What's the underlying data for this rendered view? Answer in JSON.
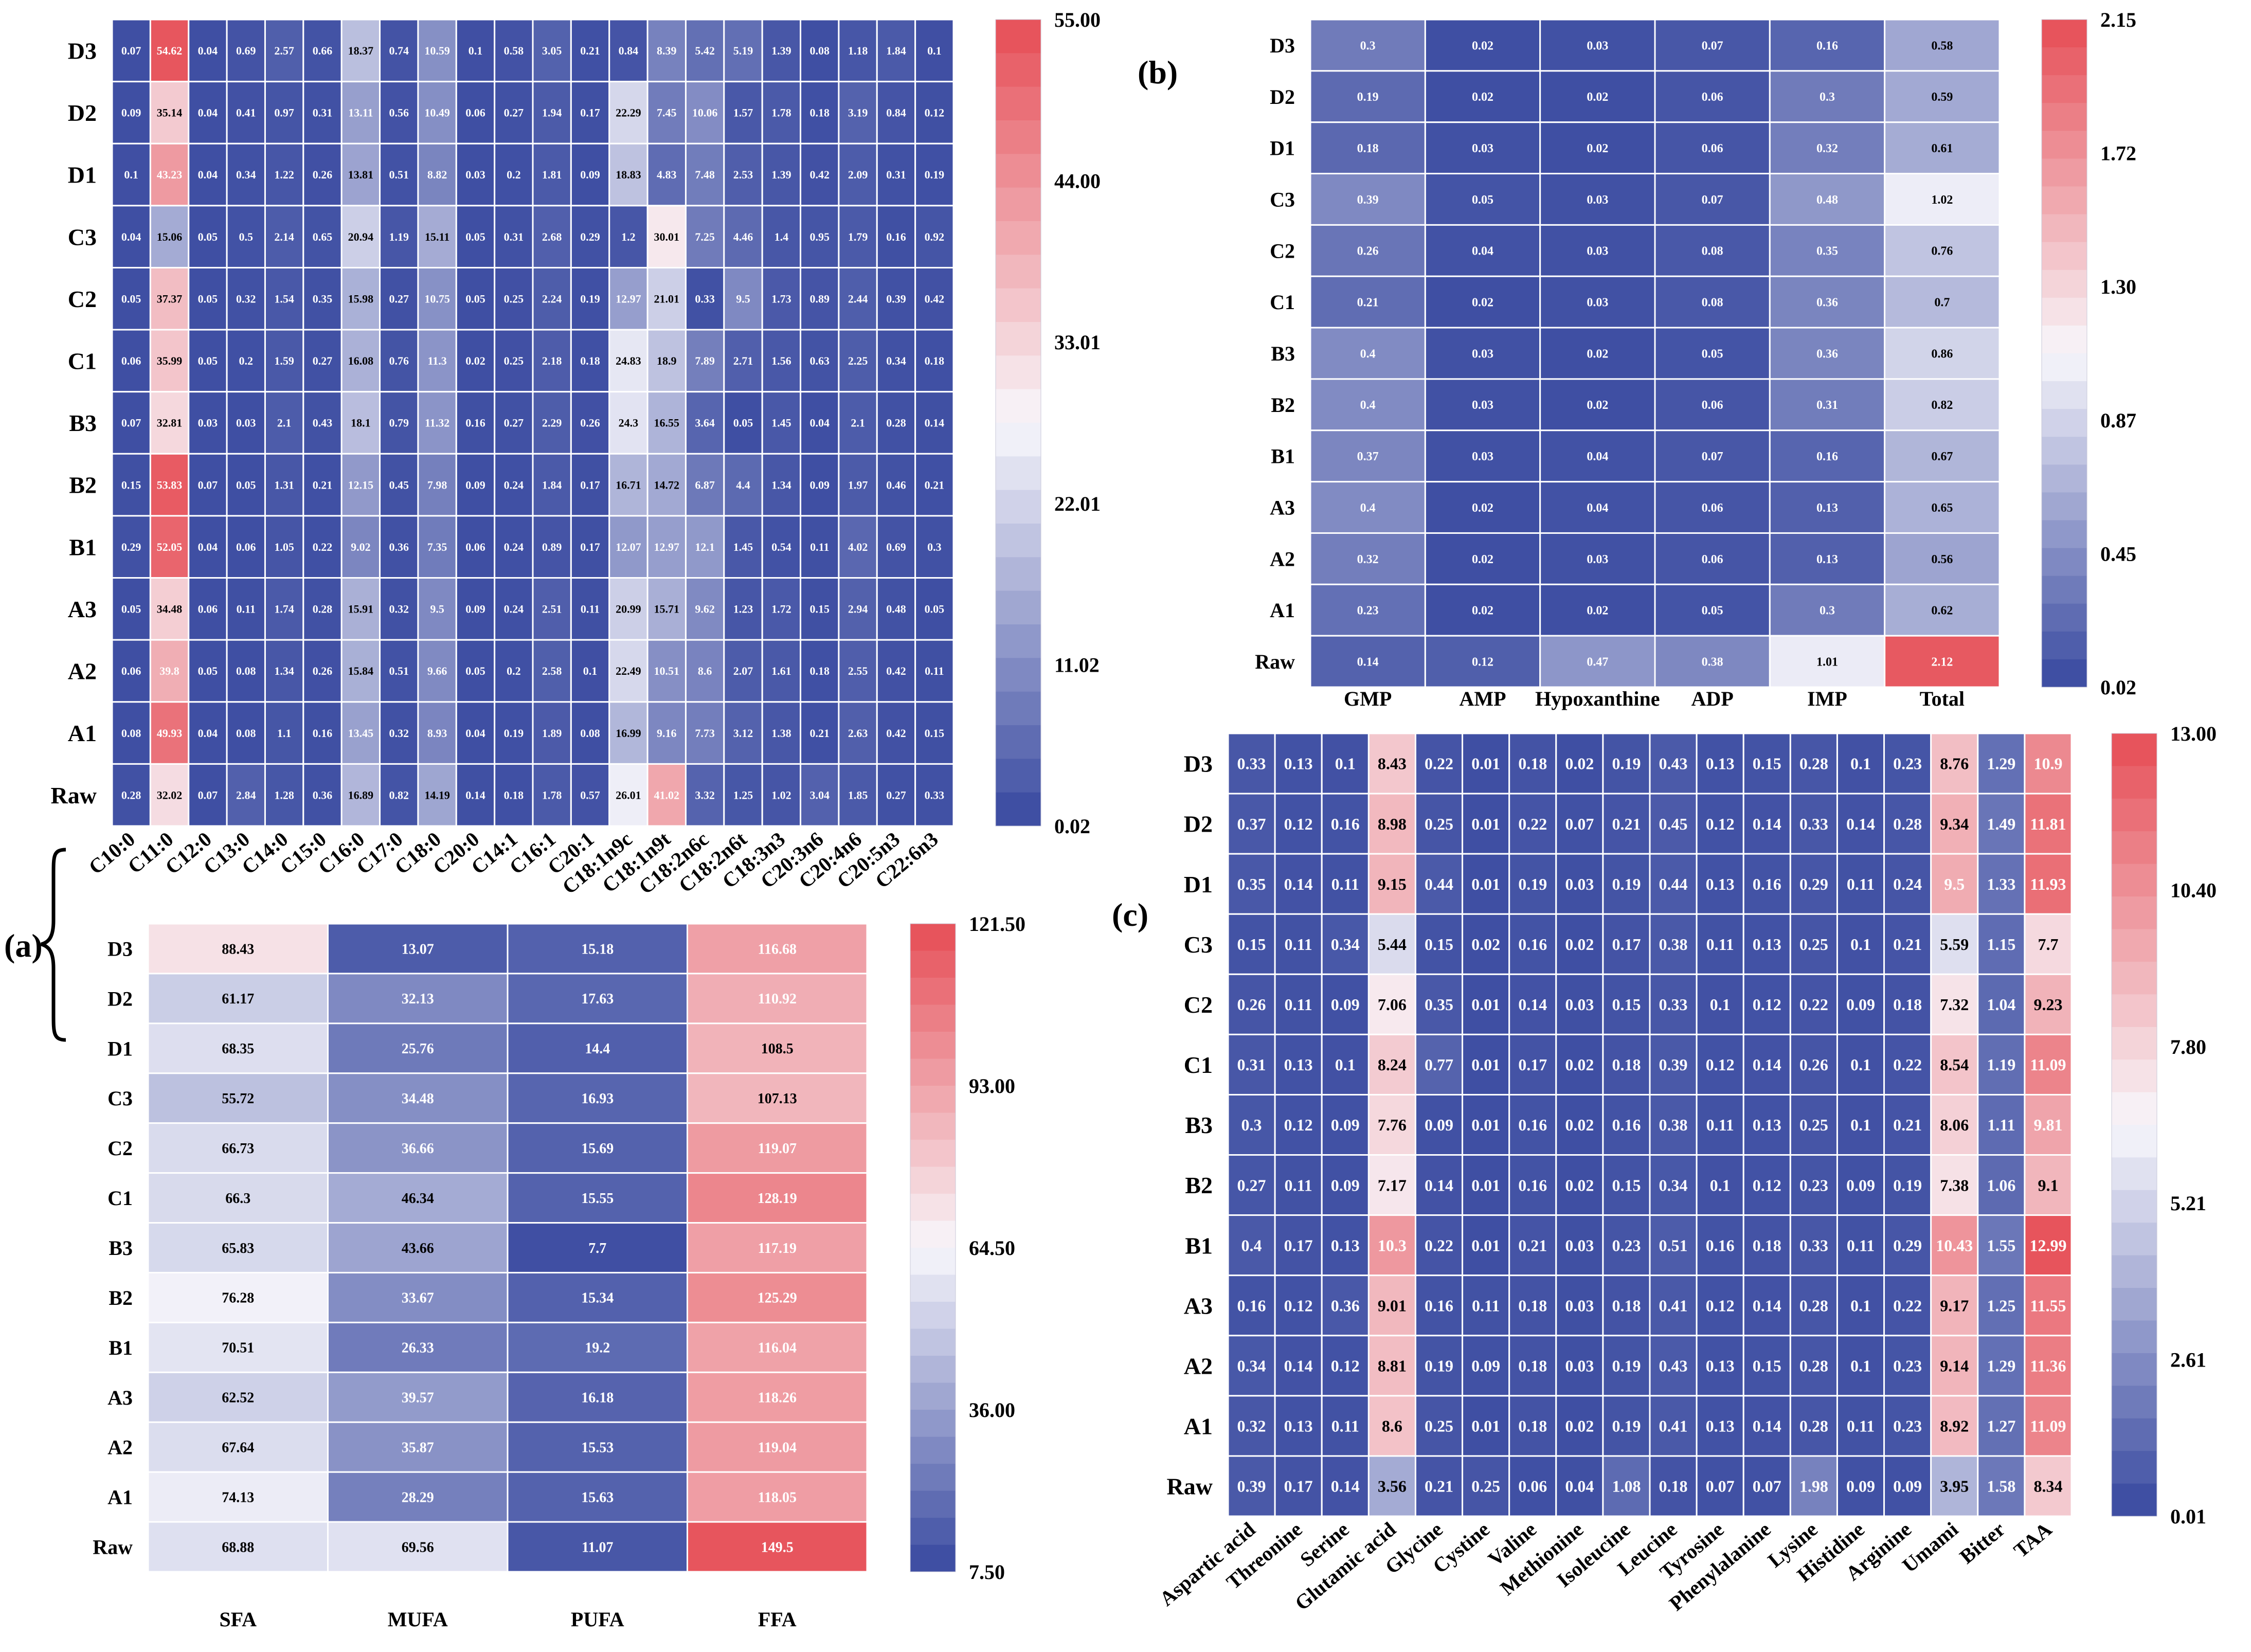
{
  "palette": {
    "low": "#3f4fa3",
    "mid": "#f8f7fc",
    "high": "#e7545c"
  },
  "panel_labels": {
    "a": "(a)",
    "b": "(b)",
    "c": "(c)"
  },
  "chart_data": [
    {
      "id": "fatty_acids",
      "type": "heatmap",
      "title": "",
      "rows": [
        "D3",
        "D2",
        "D1",
        "C3",
        "C2",
        "C1",
        "B3",
        "B2",
        "B1",
        "A3",
        "A2",
        "A1",
        "Raw"
      ],
      "columns": [
        "C10:0",
        "C11:0",
        "C12:0",
        "C13:0",
        "C14:0",
        "C15:0",
        "C16:0",
        "C17:0",
        "C18:0",
        "C20:0",
        "C14:1",
        "C16:1",
        "C20:1",
        "C18:1n9c",
        "C18:1n9t",
        "C18:2n6c",
        "C18:2n6t",
        "C18:3n3",
        "C20:3n6",
        "C20:4n6",
        "C20:5n3",
        "C22:6n3"
      ],
      "values": [
        [
          "0.07",
          "54.62",
          "0.04",
          "0.69",
          "2.57",
          "0.66",
          "18.37",
          "0.74",
          "10.59",
          "0.1",
          "0.58",
          "3.05",
          "0.21",
          "0.84",
          "8.39",
          "5.42",
          "5.19",
          "1.39",
          "0.08",
          "1.18",
          "1.84",
          "0.1"
        ],
        [
          "0.09",
          "35.14",
          "0.04",
          "0.41",
          "0.97",
          "0.31",
          "13.11",
          "0.56",
          "10.49",
          "0.06",
          "0.27",
          "1.94",
          "0.17",
          "22.29",
          "7.45",
          "10.06",
          "1.57",
          "1.78",
          "0.18",
          "3.19",
          "0.84",
          "0.12"
        ],
        [
          "0.1",
          "43.23",
          "0.04",
          "0.34",
          "1.22",
          "0.26",
          "13.81",
          "0.51",
          "8.82",
          "0.03",
          "0.2",
          "1.81",
          "0.09",
          "18.83",
          "4.83",
          "7.48",
          "2.53",
          "1.39",
          "0.42",
          "2.09",
          "0.31",
          "0.19"
        ],
        [
          "0.04",
          "15.06",
          "0.05",
          "0.5",
          "2.14",
          "0.65",
          "20.94",
          "1.19",
          "15.11",
          "0.05",
          "0.31",
          "2.68",
          "0.29",
          "1.2",
          "30.01",
          "7.25",
          "4.46",
          "1.4",
          "0.95",
          "1.79",
          "0.16",
          "0.92"
        ],
        [
          "0.05",
          "37.37",
          "0.05",
          "0.32",
          "1.54",
          "0.35",
          "15.98",
          "0.27",
          "10.75",
          "0.05",
          "0.25",
          "2.24",
          "0.19",
          "12.97",
          "21.01",
          "0.33",
          "9.5",
          "1.73",
          "0.89",
          "2.44",
          "0.39",
          "0.42"
        ],
        [
          "0.06",
          "35.99",
          "0.05",
          "0.2",
          "1.59",
          "0.27",
          "16.08",
          "0.76",
          "11.3",
          "0.02",
          "0.25",
          "2.18",
          "0.18",
          "24.83",
          "18.9",
          "7.89",
          "2.71",
          "1.56",
          "0.63",
          "2.25",
          "0.34",
          "0.18"
        ],
        [
          "0.07",
          "32.81",
          "0.03",
          "0.03",
          "2.1",
          "0.43",
          "18.1",
          "0.79",
          "11.32",
          "0.16",
          "0.27",
          "2.29",
          "0.26",
          "24.3",
          "16.55",
          "3.64",
          "0.05",
          "1.45",
          "0.04",
          "2.1",
          "0.28",
          "0.14"
        ],
        [
          "0.15",
          "53.83",
          "0.07",
          "0.05",
          "1.31",
          "0.21",
          "12.15",
          "0.45",
          "7.98",
          "0.09",
          "0.24",
          "1.84",
          "0.17",
          "16.71",
          "14.72",
          "6.87",
          "4.4",
          "1.34",
          "0.09",
          "1.97",
          "0.46",
          "0.21"
        ],
        [
          "0.29",
          "52.05",
          "0.04",
          "0.06",
          "1.05",
          "0.22",
          "9.02",
          "0.36",
          "7.35",
          "0.06",
          "0.24",
          "0.89",
          "0.17",
          "12.07",
          "12.97",
          "12.1",
          "1.45",
          "0.54",
          "0.11",
          "4.02",
          "0.69",
          "0.3"
        ],
        [
          "0.05",
          "34.48",
          "0.06",
          "0.11",
          "1.74",
          "0.28",
          "15.91",
          "0.32",
          "9.5",
          "0.09",
          "0.24",
          "2.51",
          "0.11",
          "20.99",
          "15.71",
          "9.62",
          "1.23",
          "1.72",
          "0.15",
          "2.94",
          "0.48",
          "0.05"
        ],
        [
          "0.06",
          "39.8",
          "0.05",
          "0.08",
          "1.34",
          "0.26",
          "15.84",
          "0.51",
          "9.66",
          "0.05",
          "0.2",
          "2.58",
          "0.1",
          "22.49",
          "10.51",
          "8.6",
          "2.07",
          "1.61",
          "0.18",
          "2.55",
          "0.42",
          "0.11"
        ],
        [
          "0.08",
          "49.93",
          "0.04",
          "0.08",
          "1.1",
          "0.16",
          "13.45",
          "0.32",
          "8.93",
          "0.04",
          "0.19",
          "1.89",
          "0.08",
          "16.99",
          "9.16",
          "7.73",
          "3.12",
          "1.38",
          "0.21",
          "2.63",
          "0.42",
          "0.15"
        ],
        [
          "0.28",
          "32.02",
          "0.07",
          "2.84",
          "1.28",
          "0.36",
          "16.89",
          "0.82",
          "14.19",
          "0.14",
          "0.18",
          "1.78",
          "0.57",
          "26.01",
          "41.02",
          "3.32",
          "1.25",
          "1.02",
          "3.04",
          "1.85",
          "0.27",
          "0.33"
        ]
      ],
      "vmin": 0.02,
      "vmax": 55.0,
      "colorbar_ticks": [
        "55.00",
        "44.00",
        "33.01",
        "22.01",
        "11.02",
        "0.02"
      ]
    },
    {
      "id": "fatty_acid_totals",
      "type": "heatmap",
      "title": "",
      "rows": [
        "D3",
        "D2",
        "D1",
        "C3",
        "C2",
        "C1",
        "B3",
        "B2",
        "B1",
        "A3",
        "A2",
        "A1",
        "Raw"
      ],
      "columns": [
        "SFA",
        "MUFA",
        "PUFA",
        "FFA"
      ],
      "values": [
        [
          "88.43",
          "13.07",
          "15.18",
          "116.68"
        ],
        [
          "61.17",
          "32.13",
          "17.63",
          "110.92"
        ],
        [
          "68.35",
          "25.76",
          "14.4",
          "108.5"
        ],
        [
          "55.72",
          "34.48",
          "16.93",
          "107.13"
        ],
        [
          "66.73",
          "36.66",
          "15.69",
          "119.07"
        ],
        [
          "66.3",
          "46.34",
          "15.55",
          "128.19"
        ],
        [
          "65.83",
          "43.66",
          "7.7",
          "117.19"
        ],
        [
          "76.28",
          "33.67",
          "15.34",
          "125.29"
        ],
        [
          "70.51",
          "26.33",
          "19.2",
          "116.04"
        ],
        [
          "62.52",
          "39.57",
          "16.18",
          "118.26"
        ],
        [
          "67.64",
          "35.87",
          "15.53",
          "119.04"
        ],
        [
          "74.13",
          "28.29",
          "15.63",
          "118.05"
        ],
        [
          "68.88",
          "69.56",
          "11.07",
          "149.5"
        ]
      ],
      "vmin": 7.5,
      "vmax": 150.0,
      "colorbar_ticks": [
        "121.50",
        "93.00",
        "64.50",
        "36.00",
        "7.50"
      ]
    },
    {
      "id": "nucleotides",
      "type": "heatmap",
      "title": "",
      "rows": [
        "D3",
        "D2",
        "D1",
        "C3",
        "C2",
        "C1",
        "B3",
        "B2",
        "B1",
        "A3",
        "A2",
        "A1",
        "Raw"
      ],
      "columns": [
        "GMP",
        "AMP",
        "Hypoxanthine",
        "ADP",
        "IMP",
        "Total"
      ],
      "values": [
        [
          "0.3",
          "0.02",
          "0.03",
          "0.07",
          "0.16",
          "0.58"
        ],
        [
          "0.19",
          "0.02",
          "0.02",
          "0.06",
          "0.3",
          "0.59"
        ],
        [
          "0.18",
          "0.03",
          "0.02",
          "0.06",
          "0.32",
          "0.61"
        ],
        [
          "0.39",
          "0.05",
          "0.03",
          "0.07",
          "0.48",
          "1.02"
        ],
        [
          "0.26",
          "0.04",
          "0.03",
          "0.08",
          "0.35",
          "0.76"
        ],
        [
          "0.21",
          "0.02",
          "0.03",
          "0.08",
          "0.36",
          "0.7"
        ],
        [
          "0.4",
          "0.03",
          "0.02",
          "0.05",
          "0.36",
          "0.86"
        ],
        [
          "0.4",
          "0.03",
          "0.02",
          "0.06",
          "0.31",
          "0.82"
        ],
        [
          "0.37",
          "0.03",
          "0.04",
          "0.07",
          "0.16",
          "0.67"
        ],
        [
          "0.4",
          "0.02",
          "0.04",
          "0.06",
          "0.13",
          "0.65"
        ],
        [
          "0.32",
          "0.02",
          "0.03",
          "0.06",
          "0.13",
          "0.56"
        ],
        [
          "0.23",
          "0.02",
          "0.02",
          "0.05",
          "0.3",
          "0.62"
        ],
        [
          "0.14",
          "0.12",
          "0.47",
          "0.38",
          "1.01",
          "2.12"
        ]
      ],
      "vmin": 0.02,
      "vmax": 2.15,
      "colorbar_ticks": [
        "2.15",
        "1.72",
        "1.30",
        "0.87",
        "0.45",
        "0.02"
      ]
    },
    {
      "id": "amino_acids",
      "type": "heatmap",
      "title": "",
      "rows": [
        "D3",
        "D2",
        "D1",
        "C3",
        "C2",
        "C1",
        "B3",
        "B2",
        "B1",
        "A3",
        "A2",
        "A1",
        "Raw"
      ],
      "columns": [
        "Aspartic acid",
        "Threonine",
        "Serine",
        "Glutamic acid",
        "Glycine",
        "Cystine",
        "Valine",
        "Methionine",
        "Isoleucine",
        "Leucine",
        "Tyrosine",
        "Phenylalanine",
        "Lysine",
        "Histidine",
        "Arginine",
        "Umami",
        "Bitter",
        "TAA"
      ],
      "values": [
        [
          "0.33",
          "0.13",
          "0.1",
          "8.43",
          "0.22",
          "0.01",
          "0.18",
          "0.02",
          "0.19",
          "0.43",
          "0.13",
          "0.15",
          "0.28",
          "0.1",
          "0.23",
          "8.76",
          "1.29",
          "10.9"
        ],
        [
          "0.37",
          "0.12",
          "0.16",
          "8.98",
          "0.25",
          "0.01",
          "0.22",
          "0.07",
          "0.21",
          "0.45",
          "0.12",
          "0.14",
          "0.33",
          "0.14",
          "0.28",
          "9.34",
          "1.49",
          "11.81"
        ],
        [
          "0.35",
          "0.14",
          "0.11",
          "9.15",
          "0.44",
          "0.01",
          "0.19",
          "0.03",
          "0.19",
          "0.44",
          "0.13",
          "0.16",
          "0.29",
          "0.11",
          "0.24",
          "9.5",
          "1.33",
          "11.93"
        ],
        [
          "0.15",
          "0.11",
          "0.34",
          "5.44",
          "0.15",
          "0.02",
          "0.16",
          "0.02",
          "0.17",
          "0.38",
          "0.11",
          "0.13",
          "0.25",
          "0.1",
          "0.21",
          "5.59",
          "1.15",
          "7.7"
        ],
        [
          "0.26",
          "0.11",
          "0.09",
          "7.06",
          "0.35",
          "0.01",
          "0.14",
          "0.03",
          "0.15",
          "0.33",
          "0.1",
          "0.12",
          "0.22",
          "0.09",
          "0.18",
          "7.32",
          "1.04",
          "9.23"
        ],
        [
          "0.31",
          "0.13",
          "0.1",
          "8.24",
          "0.77",
          "0.01",
          "0.17",
          "0.02",
          "0.18",
          "0.39",
          "0.12",
          "0.14",
          "0.26",
          "0.1",
          "0.22",
          "8.54",
          "1.19",
          "11.09"
        ],
        [
          "0.3",
          "0.12",
          "0.09",
          "7.76",
          "0.09",
          "0.01",
          "0.16",
          "0.02",
          "0.16",
          "0.38",
          "0.11",
          "0.13",
          "0.25",
          "0.1",
          "0.21",
          "8.06",
          "1.11",
          "9.81"
        ],
        [
          "0.27",
          "0.11",
          "0.09",
          "7.17",
          "0.14",
          "0.01",
          "0.16",
          "0.02",
          "0.15",
          "0.34",
          "0.1",
          "0.12",
          "0.23",
          "0.09",
          "0.19",
          "7.38",
          "1.06",
          "9.1"
        ],
        [
          "0.4",
          "0.17",
          "0.13",
          "10.3",
          "0.22",
          "0.01",
          "0.21",
          "0.03",
          "0.23",
          "0.51",
          "0.16",
          "0.18",
          "0.33",
          "0.11",
          "0.29",
          "10.43",
          "1.55",
          "12.99"
        ],
        [
          "0.16",
          "0.12",
          "0.36",
          "9.01",
          "0.16",
          "0.11",
          "0.18",
          "0.03",
          "0.18",
          "0.41",
          "0.12",
          "0.14",
          "0.28",
          "0.1",
          "0.22",
          "9.17",
          "1.25",
          "11.55"
        ],
        [
          "0.34",
          "0.14",
          "0.12",
          "8.81",
          "0.19",
          "0.09",
          "0.18",
          "0.03",
          "0.19",
          "0.43",
          "0.13",
          "0.15",
          "0.28",
          "0.1",
          "0.23",
          "9.14",
          "1.29",
          "11.36"
        ],
        [
          "0.32",
          "0.13",
          "0.11",
          "8.6",
          "0.25",
          "0.01",
          "0.18",
          "0.02",
          "0.19",
          "0.41",
          "0.13",
          "0.14",
          "0.28",
          "0.11",
          "0.23",
          "8.92",
          "1.27",
          "11.09"
        ],
        [
          "0.39",
          "0.17",
          "0.14",
          "3.56",
          "0.21",
          "0.25",
          "0.06",
          "0.04",
          "1.08",
          "0.18",
          "0.07",
          "0.07",
          "1.98",
          "0.09",
          "0.09",
          "3.95",
          "1.58",
          "8.34"
        ]
      ],
      "vmin": 0.01,
      "vmax": 13.0,
      "colorbar_ticks": [
        "13.00",
        "10.40",
        "7.80",
        "5.21",
        "2.61",
        "0.01"
      ]
    }
  ]
}
